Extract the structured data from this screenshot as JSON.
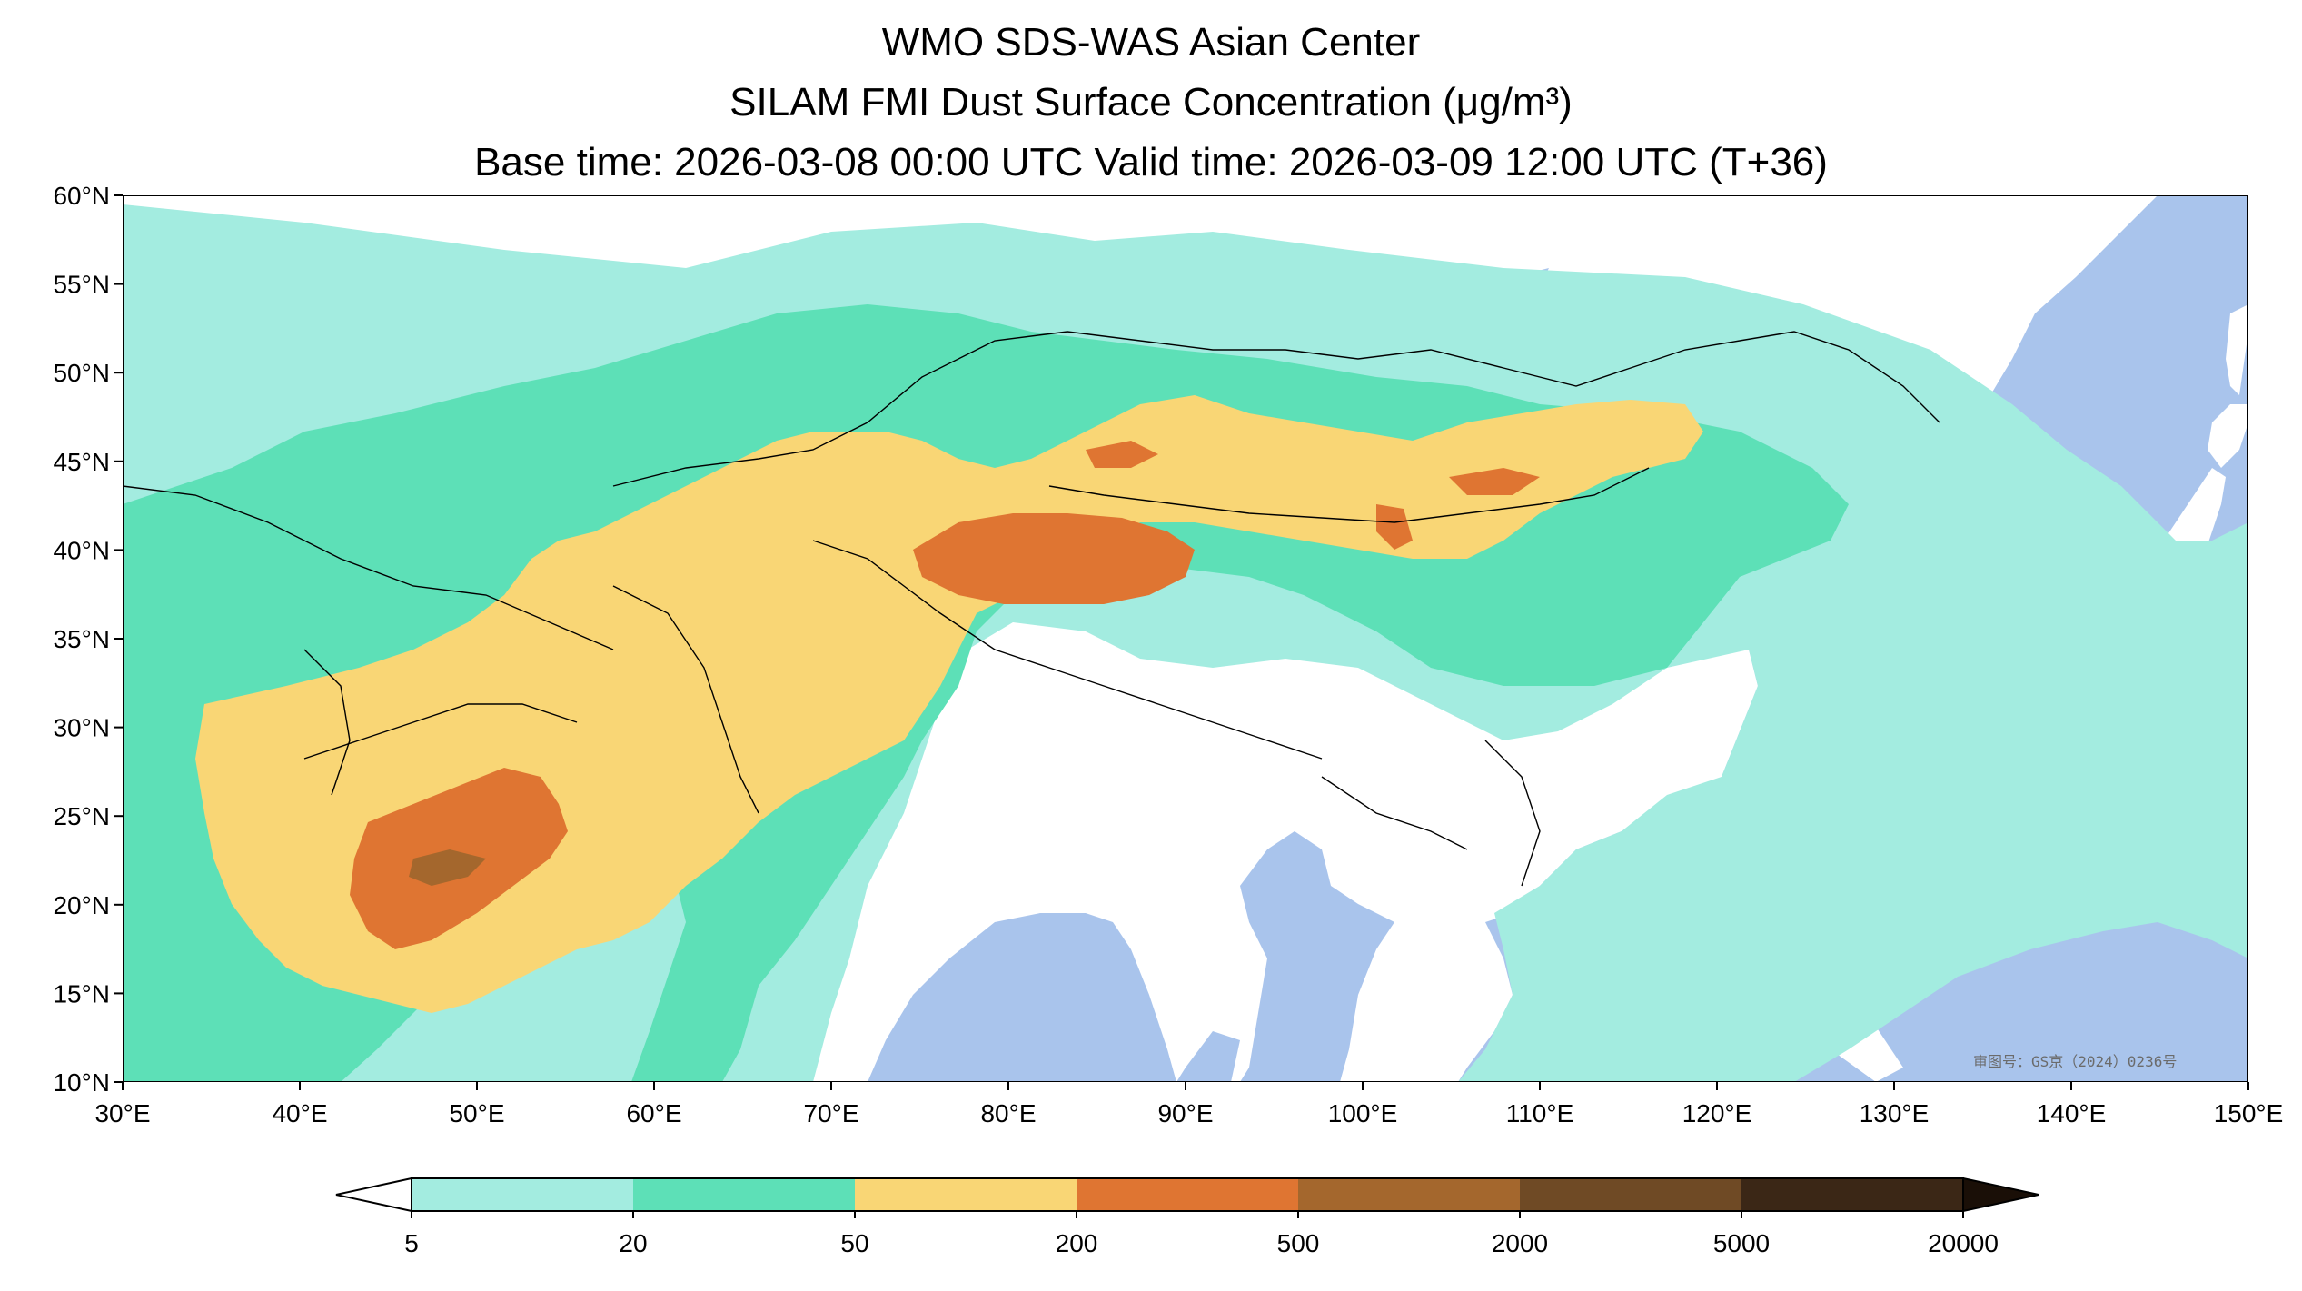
{
  "title": {
    "line1": "WMO SDS-WAS Asian Center",
    "line2": "SILAM FMI Dust Surface Concentration (μg/m³)",
    "line3": "Base time: 2026-03-08 00:00 UTC Valid time: 2026-03-09 12:00 UTC (T+36)"
  },
  "map": {
    "projection": "PlateCarree",
    "lon_range": [
      30,
      150
    ],
    "lat_range": [
      10,
      60
    ],
    "lon_ticks": [
      "30°E",
      "40°E",
      "50°E",
      "60°E",
      "70°E",
      "80°E",
      "90°E",
      "100°E",
      "110°E",
      "120°E",
      "130°E",
      "140°E",
      "150°E"
    ],
    "lat_ticks": [
      "60°N",
      "55°N",
      "50°N",
      "45°N",
      "40°N",
      "35°N",
      "30°N",
      "25°N",
      "20°N",
      "15°N",
      "10°N"
    ],
    "watermark": "审图号：GS京（2024）0236号",
    "colors": {
      "ocean": "#a9c4ec",
      "land_no_dust": "#ffffff",
      "border": "#000000",
      "river": "#b8cbe8"
    }
  },
  "colorbar": {
    "levels": [
      "5",
      "20",
      "50",
      "200",
      "500",
      "2000",
      "5000",
      "20000"
    ],
    "colors": [
      "#a3ece0",
      "#5de0b7",
      "#f9d675",
      "#df7532",
      "#a4672d",
      "#6f4a25",
      "#3b2716"
    ],
    "extend": "both",
    "under_color": "#ffffff",
    "over_color": "#1a0f07"
  }
}
